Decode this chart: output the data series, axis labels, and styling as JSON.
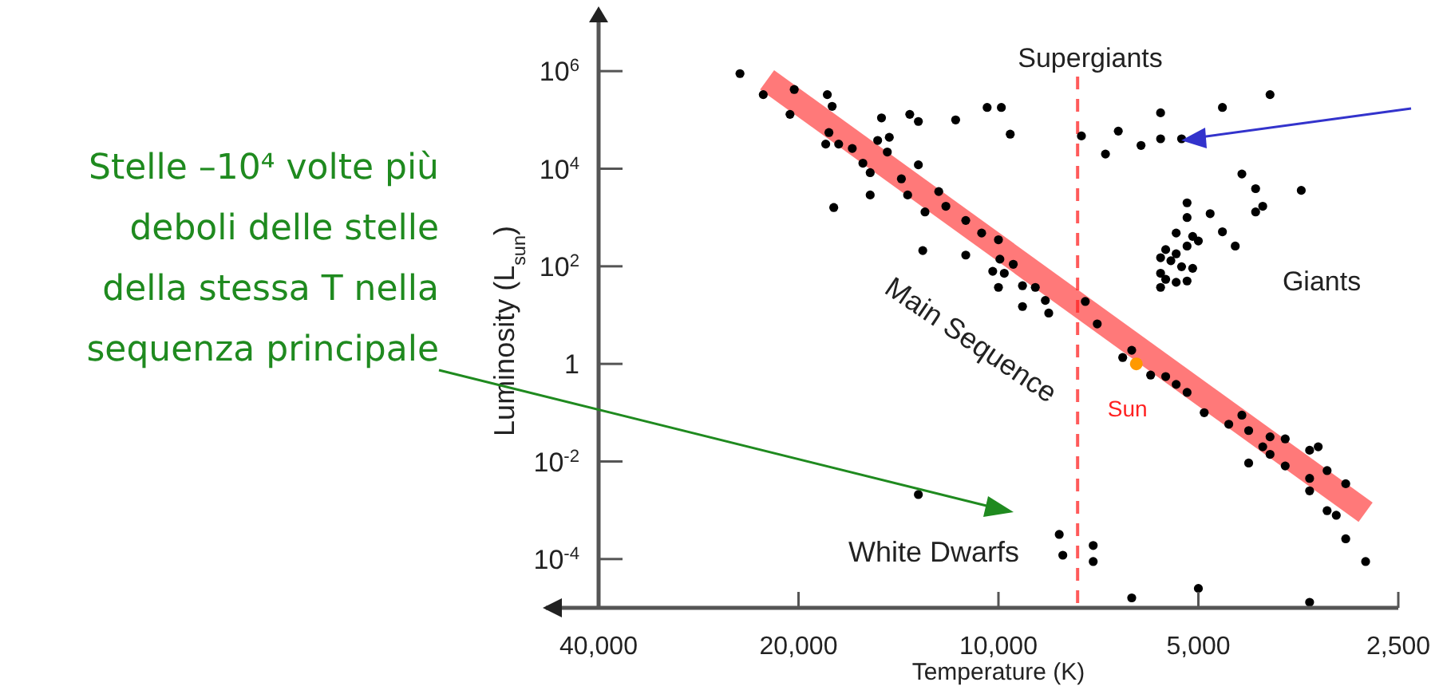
{
  "chart_data": {
    "type": "scatter",
    "xlabel": "Temperature (K)",
    "ylabel": "Luminosity (L$_{sun}$)",
    "log": "xy",
    "xlim": [
      40000,
      2500
    ],
    "ylim": [
      1e-05,
      10000000
    ],
    "xticks": [
      {
        "value": 40000,
        "label": "40,000"
      },
      {
        "value": 20000,
        "label": "20,000"
      },
      {
        "value": 10000,
        "label": "10,000"
      },
      {
        "value": 5000,
        "label": "5,000"
      },
      {
        "value": 2500,
        "label": "2,500"
      }
    ],
    "yticks": [
      {
        "value": 0.0001,
        "label": "10$^{-4}$"
      },
      {
        "value": 0.01,
        "label": "10$^{-2}$"
      },
      1,
      {
        "value": 100,
        "label": "10$^{2}$"
      },
      {
        "value": 10000,
        "label": "10$^{4}$"
      },
      {
        "value": 1000000,
        "label": "10$^{6}$"
      }
    ],
    "grid": false,
    "marker": "circle",
    "series": [
      {
        "color": "#000000",
        "x": [
          24500,
          22600,
          20300,
          20600,
          18100,
          17800,
          15000,
          13600,
          13200,
          11600,
          18000,
          18200,
          17400,
          16600,
          15200,
          14600,
          14700,
          16000,
          15600,
          13200,
          14000,
          13700,
          15600,
          17700,
          12300,
          12000,
          12900,
          11200,
          10600,
          11200,
          13000,
          10400,
          9900,
          9600,
          7500,
          6600,
          6900,
          6100,
          5700,
          5700,
          5300,
          4600,
          3900,
          4300,
          4100,
          3500,
          5200,
          5200,
          4800,
          4100,
          4000,
          5400,
          5100,
          5000,
          4600,
          4400,
          5200,
          5600,
          5400,
          5700,
          5500,
          5300,
          5100,
          5700,
          5600,
          5400,
          5200,
          5700,
          10000,
          9950,
          9500,
          10200,
          9800,
          10000,
          9200,
          8800,
          8500,
          9200,
          8400,
          7400,
          7100,
          13200,
          6300,
          6500,
          5900,
          5600,
          5400,
          5200,
          4900,
          4500,
          4300,
          4200,
          3900,
          3700,
          4000,
          3900,
          3400,
          3300,
          4200,
          3700,
          3200,
          3400,
          3000,
          3400,
          3200,
          3100,
          3000,
          2800,
          8100,
          8000,
          7200,
          7200,
          6300,
          5000,
          3400
        ],
        "values": [
          890000,
          330000,
          420000,
          130000,
          330000,
          190000,
          110000,
          130000,
          93000,
          100000,
          55000,
          32000,
          32000,
          26000,
          38000,
          44000,
          22000,
          13000,
          8300,
          12000,
          6200,
          2900,
          2900,
          1600,
          3400,
          1700,
          1300,
          870,
          480,
          170,
          210,
          180000,
          180000,
          51000,
          47000,
          59000,
          20000,
          30000,
          140000,
          41000,
          41000,
          180000,
          330000,
          7800,
          3900,
          3600,
          2000,
          1000,
          1200,
          1300,
          1700,
          480,
          410,
          330,
          510,
          260,
          260,
          220,
          180,
          150,
          130,
          98,
          91,
          72,
          54,
          47,
          50,
          37,
          350,
          140,
          110,
          79,
          72,
          37,
          40,
          37,
          20,
          15,
          11,
          19,
          6.6,
          0.0021,
          1.9,
          1.35,
          0.59,
          0.55,
          0.38,
          0.26,
          0.1,
          0.058,
          0.089,
          0.043,
          0.032,
          0.029,
          0.02,
          0.014,
          0.017,
          0.02,
          0.0093,
          0.0081,
          0.0065,
          0.0045,
          0.0035,
          0.0025,
          0.00098,
          0.00079,
          0.00026,
          8.9e-05,
          0.00032,
          0.00012,
          0.00019,
          8.9e-05,
          1.6e-05,
          2.5e-05,
          1.3e-05
        ]
      },
      {
        "color": "#ff9900",
        "x": [
          6200
        ],
        "values": [
          1
        ]
      },
      {
        "type": "line",
        "color": "#ff2020",
        "line_style": "solid",
        "marker": "none",
        "x": [
          22300,
          2800
        ],
        "values": [
          660000,
          0.00091
        ]
      }
    ],
    "ref_lines": [
      {
        "axis": "x",
        "value": 7600,
        "color": "#ff5a5a",
        "line_style": "dashed"
      }
    ],
    "annotations": [
      "Supergiants",
      "Giants",
      "Main Sequence",
      "White Dwarfs",
      {
        "text": "Sun",
        "x": 6200,
        "y": 1
      },
      "Stelle –10⁴ volte più\ndeboli delle stelle\ndella stessa T nella\nsequenza principale"
    ]
  }
}
